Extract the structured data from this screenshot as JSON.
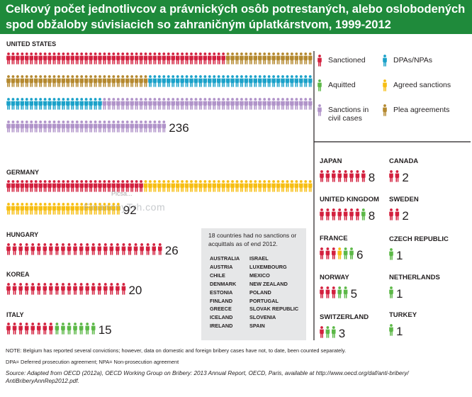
{
  "title": "Celkový počet jednotlivcov a právnických osôb potrestaných, alebo oslobodených spod obžaloby súvisiacich so zahraničným úplatkárstvom, 1999-2012",
  "watermark": "FinancnyTrh.com",
  "watermark_small": "Picsa...",
  "colors": {
    "title_bg": "#1f8a3b",
    "sanctioned": "#d3203e",
    "dpas_npas": "#1aa1c9",
    "aquitted": "#5cb847",
    "agreed_sanctions": "#f7be12",
    "civil_cases": "#b093c9",
    "plea_agreements": "#b4882e",
    "box_bg": "#e6e7e8"
  },
  "chart_data": {
    "type": "pictogram",
    "title": "Celkový počet jednotlivcov a právnických osôb potrestaných, alebo oslobodených spod obžaloby súvisiacich so zahraničným úplatkárstvom, 1999-2012",
    "categories_legend": [
      {
        "key": "sanctioned",
        "label": "Sanctioned",
        "color": "#d3203e",
        "icon": "person-icon"
      },
      {
        "key": "dpas_npas",
        "label": "DPAs/NPAs",
        "color": "#1aa1c9",
        "icon": "person-icon"
      },
      {
        "key": "aquitted",
        "label": "Aquitted",
        "color": "#5cb847",
        "icon": "person-icon"
      },
      {
        "key": "agreed_sanctions",
        "label": "Agreed sanctions",
        "color": "#f7be12",
        "icon": "person-icon"
      },
      {
        "key": "civil_cases",
        "label": "Sanctions in\ncivil cases",
        "color": "#b093c9",
        "icon": "person-icon"
      },
      {
        "key": "plea_agreements",
        "label": "Plea agreements",
        "color": "#b4882e",
        "icon": "person-icon"
      }
    ],
    "countries": [
      {
        "name": "UNITED STATES",
        "total": 236,
        "breakdown": {
          "sanctioned": 48,
          "plea_agreements": 50,
          "dpas_npas": 57,
          "civil_cases": 81
        }
      },
      {
        "name": "GERMANY",
        "total": 92,
        "breakdown": {
          "sanctioned": 30,
          "agreed_sanctions": 62
        }
      },
      {
        "name": "HUNGARY",
        "total": 26,
        "breakdown": {
          "sanctioned": 26
        }
      },
      {
        "name": "KOREA",
        "total": 20,
        "breakdown": {
          "sanctioned": 20
        }
      },
      {
        "name": "ITALY",
        "total": 15,
        "breakdown": {
          "sanctioned": 8,
          "aquitted": 7
        }
      },
      {
        "name": "JAPAN",
        "total": 8,
        "breakdown": {
          "sanctioned": 8
        }
      },
      {
        "name": "CANADA",
        "total": 2,
        "breakdown": {
          "sanctioned": 2
        }
      },
      {
        "name": "UNITED KINGDOM",
        "total": 8,
        "breakdown": {
          "sanctioned": 7,
          "aquitted": 1
        }
      },
      {
        "name": "SWEDEN",
        "total": 2,
        "breakdown": {
          "sanctioned": 2
        }
      },
      {
        "name": "FRANCE",
        "total": 6,
        "breakdown": {
          "sanctioned": 3,
          "agreed_sanctions": 1,
          "aquitted": 2
        }
      },
      {
        "name": "CZECH REPUBLIC",
        "total": 1,
        "breakdown": {
          "aquitted": 1
        }
      },
      {
        "name": "NORWAY",
        "total": 5,
        "breakdown": {
          "sanctioned": 3,
          "aquitted": 2
        }
      },
      {
        "name": "NETHERLANDS",
        "total": 1,
        "breakdown": {
          "aquitted": 1
        }
      },
      {
        "name": "SWITZERLAND",
        "total": 3,
        "breakdown": {
          "sanctioned": 1,
          "aquitted": 2
        }
      },
      {
        "name": "TURKEY",
        "total": 1,
        "breakdown": {
          "aquitted": 1
        }
      }
    ]
  },
  "no_sanctions_box": {
    "heading": "18 countries had no sanctions or acquittals as of end 2012.",
    "countries_col1": [
      "AUSTRALIA",
      "AUSTRIA",
      "CHILE",
      "DENMARK",
      "ESTONIA",
      "FINLAND",
      "GREECE",
      "ICELAND",
      "IRELAND"
    ],
    "countries_col2": [
      "ISRAEL",
      "LUXEMBOURG",
      "MEXICO",
      "NEW ZEALAND",
      "POLAND",
      "PORTUGAL",
      "SLOVAK REPUBLIC",
      "SLOVENIA",
      "SPAIN"
    ]
  },
  "notes": {
    "note": "NOTE: Belgium has reported several convictions; however, data on domestic and foreign bribery cases have not, to date, been counted separately.",
    "dpa_npa": "DPA= Deferred prosecution agreement; NPA= Non-prosecution agreement",
    "source_1": "Source: Adapted from OECD (2012a), OECD Working Group on Bribery: 2013 Annual Report, OECD, Paris, available at http://www.oecd.org/daf/anti-bribery/",
    "source_2": "AntiBriberyAnnRep2012.pdf."
  }
}
